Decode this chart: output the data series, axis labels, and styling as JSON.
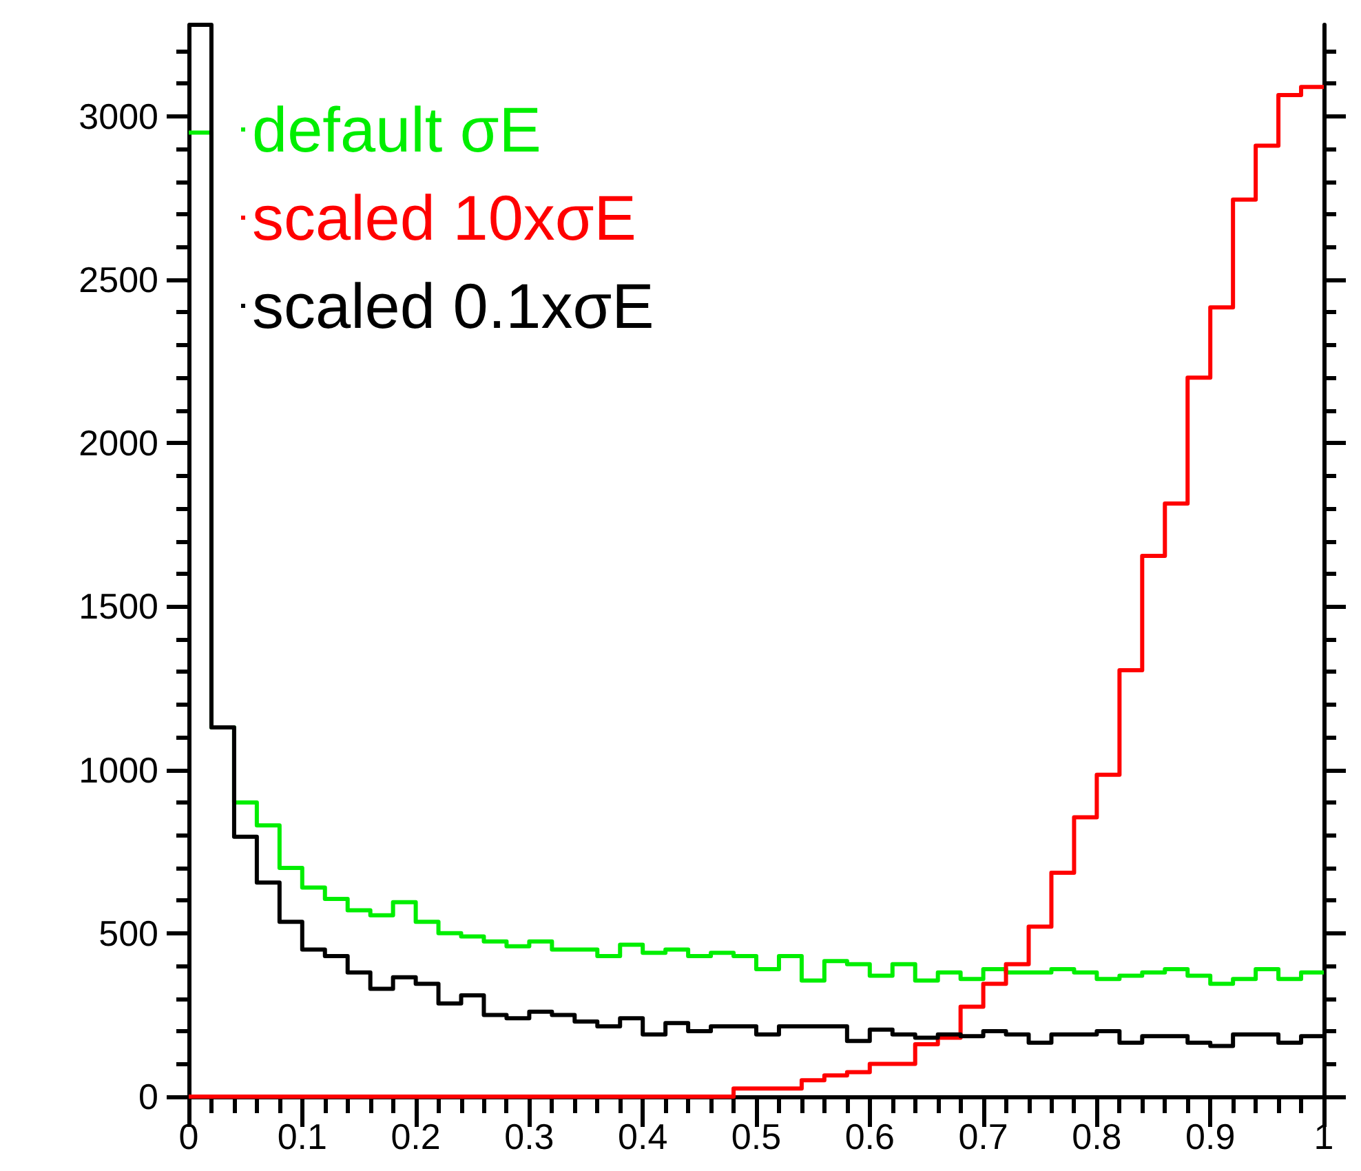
{
  "chart_data": {
    "type": "histogram",
    "bins": [
      0,
      0.02,
      0.04,
      0.06,
      0.08,
      0.1,
      0.12,
      0.14,
      0.16,
      0.18,
      0.2,
      0.22,
      0.24,
      0.26,
      0.28,
      0.3,
      0.32,
      0.34,
      0.36,
      0.38,
      0.4,
      0.42,
      0.44,
      0.46,
      0.48,
      0.5,
      0.52,
      0.54,
      0.56,
      0.58,
      0.6,
      0.62,
      0.64,
      0.66,
      0.68,
      0.7,
      0.72,
      0.74,
      0.76,
      0.78,
      0.8,
      0.82,
      0.84,
      0.86,
      0.88,
      0.9,
      0.92,
      0.94,
      0.96,
      0.98,
      1
    ],
    "series": [
      {
        "name": "default σE",
        "color": "#00ee00",
        "values": [
          2950,
          1130,
          900,
          830,
          700,
          640,
          605,
          570,
          555,
          595,
          535,
          500,
          490,
          475,
          460,
          475,
          450,
          450,
          430,
          465,
          440,
          450,
          430,
          440,
          430,
          390,
          430,
          355,
          415,
          405,
          370,
          405,
          355,
          380,
          360,
          390,
          380,
          380,
          390,
          380,
          360,
          370,
          380,
          390,
          370,
          345,
          360,
          390,
          360,
          380
        ]
      },
      {
        "name": "scaled 10xσE",
        "color": "#ff0000",
        "values": [
          0,
          0,
          0,
          0,
          0,
          0,
          0,
          0,
          0,
          0,
          0,
          0,
          0,
          0,
          0,
          0,
          0,
          0,
          0,
          0,
          0,
          0,
          0,
          0,
          25,
          25,
          25,
          50,
          65,
          75,
          100,
          100,
          160,
          180,
          275,
          345,
          405,
          520,
          685,
          855,
          985,
          1305,
          1655,
          1815,
          2200,
          2415,
          2745,
          2910,
          3065,
          3090
        ]
      },
      {
        "name": "scaled 0.1xσE",
        "color": "#000000",
        "values": [
          3280,
          1130,
          795,
          655,
          535,
          450,
          430,
          380,
          330,
          365,
          345,
          285,
          310,
          250,
          240,
          260,
          250,
          230,
          215,
          240,
          190,
          225,
          200,
          215,
          215,
          190,
          215,
          215,
          215,
          170,
          205,
          190,
          180,
          190,
          185,
          200,
          190,
          165,
          190,
          190,
          200,
          165,
          185,
          185,
          165,
          155,
          190,
          190,
          165,
          185
        ]
      }
    ],
    "xlim": [
      0,
      1
    ],
    "xticks": [
      0,
      0.1,
      0.2,
      0.3,
      0.4,
      0.5,
      0.6,
      0.7,
      0.8,
      0.9,
      1
    ],
    "ylim": [
      0,
      3280
    ],
    "yticks": [
      0,
      500,
      1000,
      1500,
      2000,
      2500,
      3000
    ],
    "legend": "top left",
    "grid": false
  }
}
